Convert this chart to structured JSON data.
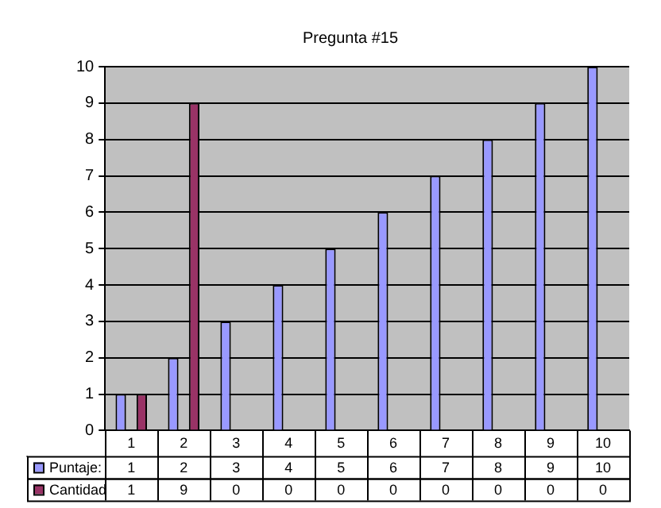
{
  "chart_data": {
    "type": "bar",
    "title": "Pregunta #15",
    "categories": [
      "1",
      "2",
      "3",
      "4",
      "5",
      "6",
      "7",
      "8",
      "9",
      "10"
    ],
    "series": [
      {
        "name": "Puntaje:",
        "color": "#9999ff",
        "values": [
          1,
          2,
          3,
          4,
          5,
          6,
          7,
          8,
          9,
          10
        ]
      },
      {
        "name": "Cantidad",
        "color": "#993366",
        "values": [
          1,
          9,
          0,
          0,
          0,
          0,
          0,
          0,
          0,
          0
        ]
      }
    ],
    "ylim": [
      0,
      10
    ],
    "yticks": [
      0,
      1,
      2,
      3,
      4,
      5,
      6,
      7,
      8,
      9,
      10
    ],
    "grid": "y",
    "legend": "bottom",
    "data_labels": true
  }
}
